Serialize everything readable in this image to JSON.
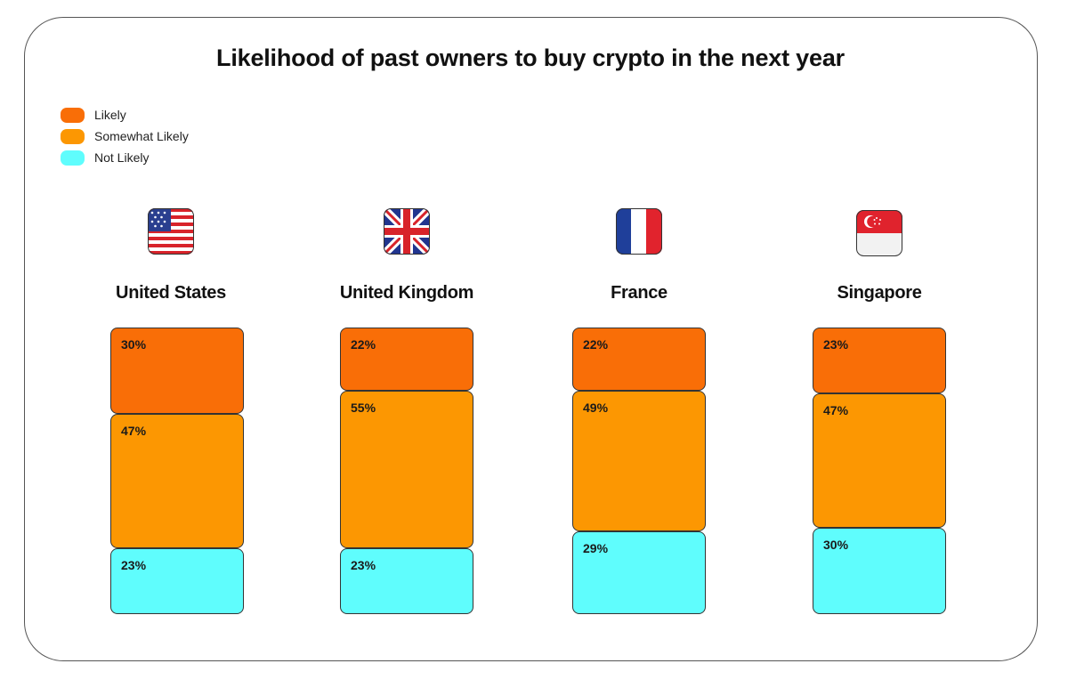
{
  "colors": {
    "likely": "#f96e07",
    "somewhat_likely": "#fc9702",
    "not_likely": "#5ffdfd"
  },
  "chart_data": {
    "type": "bar",
    "stacked": true,
    "title": "Likelihood of past owners to buy crypto in the next year",
    "categories": [
      "United States",
      "United Kingdom",
      "France",
      "Singapore"
    ],
    "category_icons": [
      "us-flag-icon",
      "uk-flag-icon",
      "france-flag-icon",
      "singapore-flag-icon"
    ],
    "legend": [
      "Likely",
      "Somewhat Likely",
      "Not Likely"
    ],
    "legend_position": "top-left",
    "series": [
      {
        "name": "Likely",
        "values": [
          30,
          22,
          22,
          23
        ],
        "labels": [
          "30%",
          "22%",
          "22%",
          "23%"
        ]
      },
      {
        "name": "Somewhat Likely",
        "values": [
          47,
          55,
          49,
          47
        ],
        "labels": [
          "47%",
          "55%",
          "49%",
          "47%"
        ]
      },
      {
        "name": "Not Likely",
        "values": [
          23,
          23,
          29,
          30
        ],
        "labels": [
          "23%",
          "23%",
          "29%",
          "30%"
        ]
      }
    ],
    "unit": "%",
    "grid": false,
    "axes": false
  }
}
